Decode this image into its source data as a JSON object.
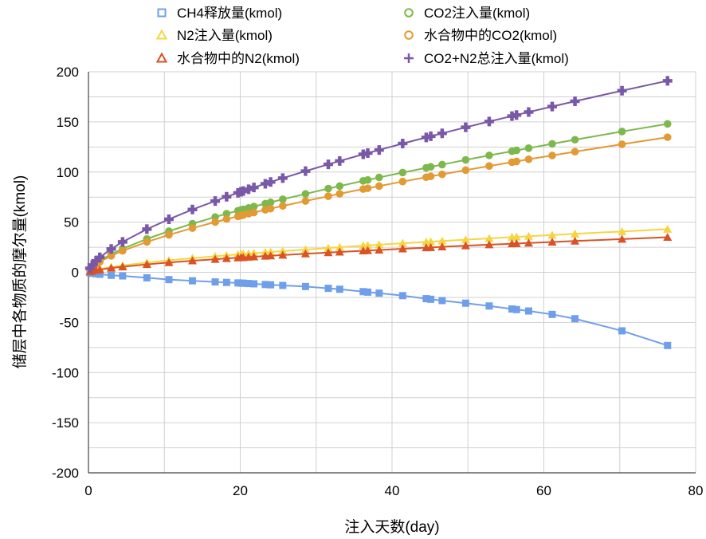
{
  "chart_data": {
    "type": "line",
    "title": "",
    "xlabel": "注入天数(day)",
    "ylabel": "储层中各物质的摩尔量(kmol)",
    "xlim": [
      0,
      80
    ],
    "ylim": [
      -200,
      200
    ],
    "xticks": [
      0,
      20,
      40,
      60,
      80
    ],
    "yticks": [
      200,
      150,
      100,
      50,
      0,
      -50,
      -100,
      -150,
      -200
    ],
    "grid": true,
    "legend_placement": "top",
    "x": [
      0,
      0.2,
      0.5,
      1,
      1.5,
      3,
      4.5,
      7.7,
      10.6,
      13.7,
      16.7,
      18.2,
      19.7,
      20.1,
      20.4,
      21.1,
      21.8,
      23.3,
      24.0,
      25.6,
      28.6,
      31.6,
      33.1,
      36.2,
      36.8,
      38.3,
      41.4,
      44.5,
      45.1,
      46.6,
      49.7,
      52.8,
      55.8,
      56.4,
      58.0,
      61.1,
      64.1,
      70.3,
      76.3
    ],
    "series": [
      {
        "name": "CH4释放量(kmol)",
        "color": "#6f9fea",
        "marker": "square",
        "values": [
          0,
          -0.5,
          -1,
          -1.5,
          -2,
          -3,
          -3.6,
          -5.5,
          -7.3,
          -8.5,
          -9.6,
          -10.1,
          -10.6,
          -10.8,
          -10.9,
          -11.2,
          -11.5,
          -12.2,
          -12.5,
          -13.1,
          -14.2,
          -16,
          -16.9,
          -19.3,
          -19.8,
          -20.8,
          -23.3,
          -26.3,
          -26.9,
          -28.2,
          -30.8,
          -33.6,
          -36.6,
          -37.2,
          -38.6,
          -42,
          -46.3,
          -58.4,
          -73
        ]
      },
      {
        "name": "CO2注入量(kmol)",
        "color": "#7db84c",
        "marker": "circle",
        "values": [
          0,
          3.1,
          5.7,
          8.8,
          11.5,
          18.1,
          23.5,
          33.3,
          41.0,
          48.5,
          55.1,
          58.4,
          61.4,
          62.2,
          62.8,
          64.2,
          65.6,
          68.4,
          69.8,
          72.8,
          78.2,
          83.5,
          86.0,
          91.2,
          92.1,
          94.6,
          99.5,
          104.2,
          105.2,
          107.4,
          112.1,
          116.6,
          120.7,
          121.6,
          123.8,
          128.1,
          132.2,
          140.4,
          148.0
        ]
      },
      {
        "name": "N2注入量(kmol)",
        "color": "#f4d642",
        "marker": "triangle",
        "values": [
          0,
          0.9,
          1.6,
          2.6,
          3.4,
          5.2,
          6.8,
          9.7,
          11.9,
          14.1,
          16.0,
          16.9,
          17.8,
          18.1,
          18.2,
          18.6,
          19.0,
          19.9,
          20.3,
          21.1,
          22.7,
          24.2,
          25.0,
          26.5,
          26.8,
          27.5,
          28.9,
          30.3,
          30.5,
          31.2,
          32.5,
          33.8,
          35.1,
          35.3,
          36.0,
          37.2,
          38.4,
          40.7,
          43.0
        ]
      },
      {
        "name": "水合物中的CO2(kmol)",
        "color": "#e29a33",
        "marker": "circle",
        "values": [
          0,
          2.8,
          5.1,
          8.0,
          10.5,
          16.4,
          21.4,
          30.3,
          37.3,
          44.1,
          50.1,
          53.1,
          55.8,
          56.6,
          57.1,
          58.4,
          59.6,
          62.3,
          63.5,
          66.2,
          71.1,
          75.9,
          78.3,
          83.0,
          83.8,
          86.0,
          90.5,
          94.8,
          95.7,
          97.7,
          101.9,
          106.0,
          109.8,
          110.6,
          112.7,
          116.5,
          120.3,
          127.7,
          134.7
        ]
      },
      {
        "name": "水合物中的N2(kmol)",
        "color": "#da5226",
        "marker": "triangle",
        "values": [
          0,
          0.7,
          1.3,
          2.1,
          2.7,
          4.3,
          5.5,
          7.9,
          9.7,
          11.5,
          13.0,
          13.8,
          14.5,
          14.7,
          14.8,
          15.2,
          15.5,
          16.2,
          16.5,
          17.2,
          18.5,
          19.7,
          20.3,
          21.5,
          21.8,
          22.3,
          23.5,
          24.6,
          24.8,
          25.4,
          26.5,
          27.5,
          28.5,
          28.7,
          29.2,
          30.2,
          31.2,
          33.1,
          35.0
        ]
      },
      {
        "name": "CO2+N2总注入量(kmol)",
        "color": "#7a58a8",
        "marker": "plus",
        "values": [
          0,
          4.0,
          7.3,
          11.4,
          14.9,
          23.3,
          30.3,
          43.0,
          52.9,
          62.6,
          71.1,
          75.3,
          79.2,
          80.3,
          81.0,
          82.8,
          84.6,
          88.3,
          90.1,
          93.9,
          100.9,
          107.7,
          111.0,
          117.7,
          118.9,
          122.0,
          128.4,
          134.5,
          135.7,
          138.6,
          144.6,
          150.4,
          155.8,
          156.9,
          159.8,
          165.3,
          170.6,
          181.1,
          191.0
        ]
      }
    ]
  }
}
